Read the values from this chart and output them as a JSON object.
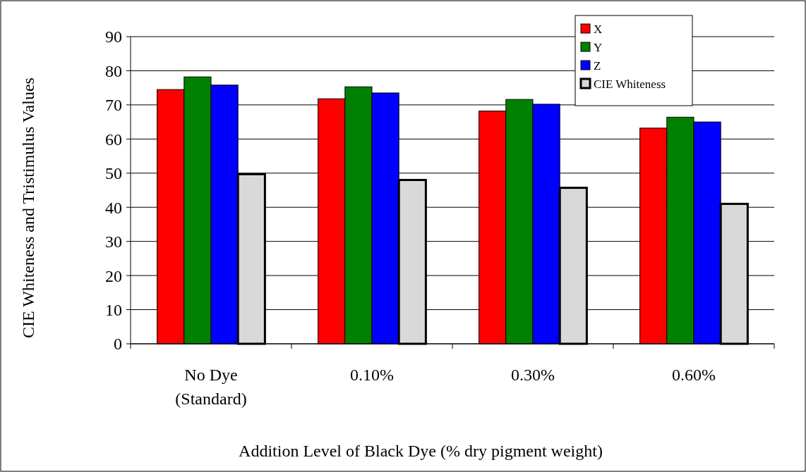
{
  "chart_data": {
    "type": "bar",
    "xlabel": "Addition Level of Black Dye (% dry pigment weight)",
    "ylabel": "CIE Whiteness and Tristimulus Values",
    "categories": [
      "No Dye\n(Standard)",
      "0.10%",
      "0.30%",
      "0.60%"
    ],
    "series": [
      {
        "name": "X",
        "color": "#ff0000",
        "values": [
          74.5,
          71.8,
          68.2,
          63.2
        ]
      },
      {
        "name": "Y",
        "color": "#008000",
        "values": [
          78.2,
          75.3,
          71.6,
          66.4
        ]
      },
      {
        "name": "Z",
        "color": "#0000ff",
        "values": [
          75.8,
          73.5,
          70.2,
          65.0
        ]
      },
      {
        "name": "CIE Whiteness",
        "color": "#d9d9d9",
        "values": [
          49.7,
          48.0,
          45.7,
          41.0
        ]
      }
    ],
    "ylim": [
      0,
      90
    ],
    "yticks": [
      0,
      10,
      20,
      30,
      40,
      50,
      60,
      70,
      80,
      90
    ],
    "grid": "y",
    "legend": "top right"
  }
}
